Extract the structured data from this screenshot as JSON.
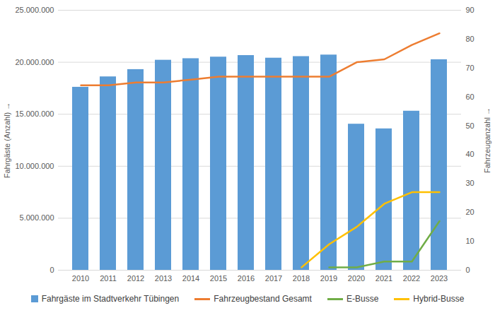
{
  "chart_data": {
    "type": "bar",
    "categories": [
      "2010",
      "2011",
      "2012",
      "2013",
      "2014",
      "2015",
      "2016",
      "2017",
      "2018",
      "2019",
      "2020",
      "2021",
      "2022",
      "2023"
    ],
    "series": [
      {
        "name": "Fahrgäste im Stadtverkehr Tübingen",
        "type": "bar",
        "color": "#5b9bd5",
        "values": [
          17600000,
          18600000,
          19300000,
          20200000,
          20350000,
          20500000,
          20650000,
          20400000,
          20550000,
          20700000,
          14050000,
          13600000,
          15300000,
          20250000
        ]
      },
      {
        "name": "Fahrzeugbestand Gesamt",
        "type": "line",
        "axis": "y2",
        "color": "#ed7d31",
        "values": [
          64,
          64,
          65,
          65,
          66,
          67,
          67,
          67,
          67,
          67,
          72,
          73,
          78,
          82
        ]
      },
      {
        "name": "E-Busse",
        "type": "line",
        "axis": "y2",
        "color": "#70ad47",
        "values": [
          null,
          null,
          null,
          null,
          null,
          null,
          null,
          null,
          null,
          1,
          1,
          3,
          3,
          17
        ]
      },
      {
        "name": "Hybrid-Busse",
        "type": "line",
        "axis": "y2",
        "color": "#ffc000",
        "values": [
          null,
          null,
          null,
          null,
          null,
          null,
          null,
          null,
          1,
          9,
          15,
          23,
          27,
          27
        ]
      }
    ],
    "ylabel": "Fahrgäste (Anzahl)",
    "y2label": "Fahrzeuganzahl",
    "ylim": [
      0,
      25000000
    ],
    "yticks": [
      0,
      {
        "value": 5000000,
        "label": "5.000.000"
      },
      {
        "value": 10000000,
        "label": "10.000.000"
      },
      {
        "value": 15000000,
        "label": "15.000.000"
      },
      {
        "value": 20000000,
        "label": "20.000.000"
      },
      {
        "value": 25000000,
        "label": "25.000.000"
      }
    ],
    "y2lim": [
      0,
      90
    ],
    "y2ticks": [
      0,
      10,
      20,
      30,
      40,
      50,
      60,
      70,
      80,
      90
    ],
    "grid": true,
    "legend": "bottom"
  }
}
